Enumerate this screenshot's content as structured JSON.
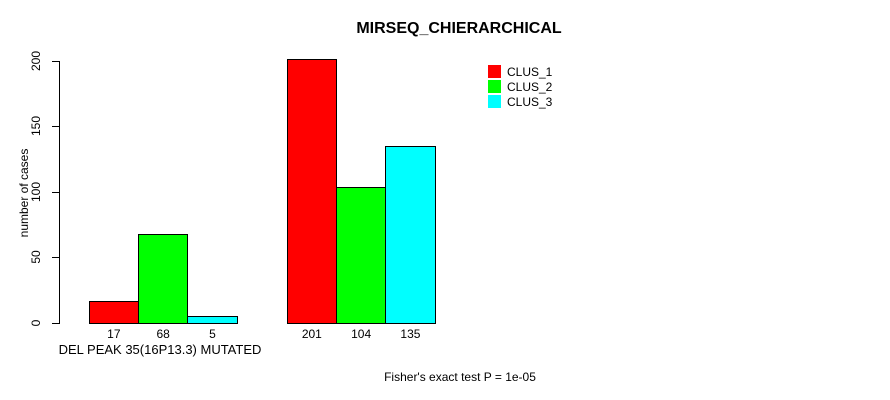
{
  "chart": {
    "background": "#FFFFFF",
    "axis_color": "#000000",
    "text_color": "#000000"
  },
  "chart_data": {
    "type": "bar",
    "title": "MIRSEQ_CHIERARCHICAL",
    "ylabel": "number of cases",
    "xlabel": "DEL PEAK 35(16P13.3) MUTATED",
    "footnote": "Fisher's exact test P = 1e-05",
    "ylim": [
      0,
      200
    ],
    "yticks": [
      0,
      50,
      100,
      150,
      200
    ],
    "grid": false,
    "bar_value_labels_shown": true,
    "legend_position": "top-right",
    "n_groups": 2,
    "series": [
      {
        "name": "CLUS_1",
        "color": "#FF0000",
        "values": [
          17,
          201
        ]
      },
      {
        "name": "CLUS_2",
        "color": "#00FF00",
        "values": [
          68,
          104
        ]
      },
      {
        "name": "CLUS_3",
        "color": "#00FFFF",
        "values": [
          5,
          135
        ]
      }
    ]
  }
}
